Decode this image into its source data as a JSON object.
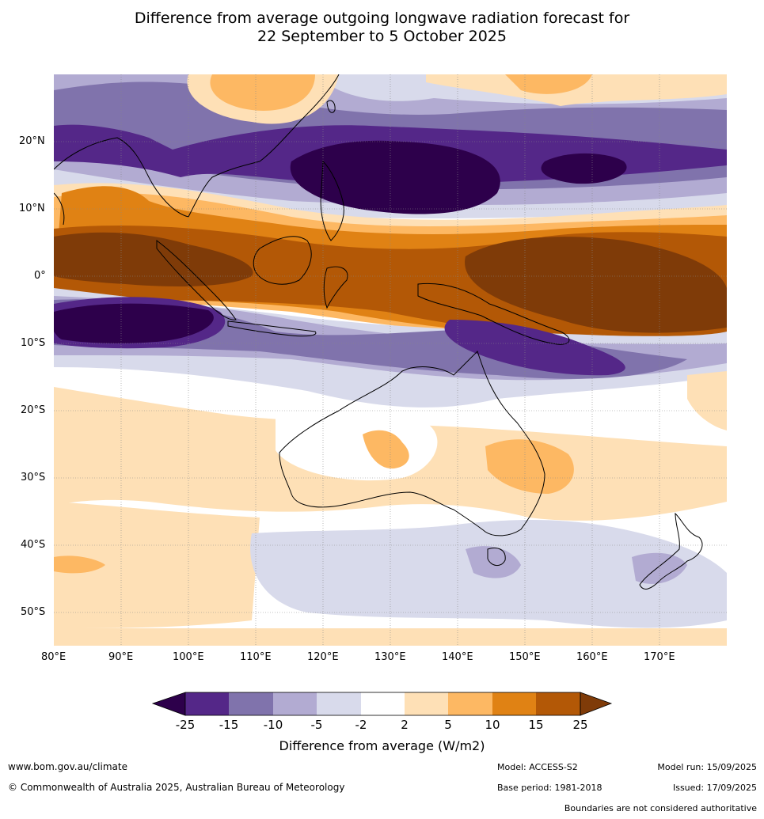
{
  "title": {
    "line1": "Difference from average outgoing longwave radiation forecast for",
    "line2": "22 September to 5 October 2025"
  },
  "map": {
    "lon_labels": [
      "80°E",
      "90°E",
      "100°E",
      "110°E",
      "120°E",
      "130°E",
      "140°E",
      "150°E",
      "160°E",
      "170°E"
    ],
    "lat_labels": [
      "20°N",
      "10°N",
      "0°",
      "10°S",
      "20°S",
      "30°S",
      "40°S",
      "50°S"
    ],
    "colors": {
      "lt_neg25": "#2d004b",
      "neg25_neg15": "#542788",
      "neg15_neg10": "#8073ac",
      "neg10_neg5": "#b2abd2",
      "neg5_neg2": "#d8daeb",
      "neg2_2": "#ffffff",
      "p2_5": "#fee0b6",
      "p5_10": "#fdb863",
      "p10_15": "#e08214",
      "p15_25": "#b35806",
      "gt_25": "#7f3b08"
    }
  },
  "colorbar": {
    "ticks": [
      "-25",
      "-15",
      "-10",
      "-5",
      "-2",
      "2",
      "5",
      "10",
      "15",
      "25"
    ],
    "label": "Difference from average (W/m2)"
  },
  "footer": {
    "website": "www.bom.gov.au/climate",
    "copyright": "© Commonwealth of Australia 2025, Australian Bureau of Meteorology",
    "model": "Model: ACCESS-S2",
    "base_period": "Base period: 1981-2018",
    "model_run": "Model run: 15/09/2025",
    "issued": "Issued: 17/09/2025",
    "disclaimer": "Boundaries are not considered authoritative"
  }
}
